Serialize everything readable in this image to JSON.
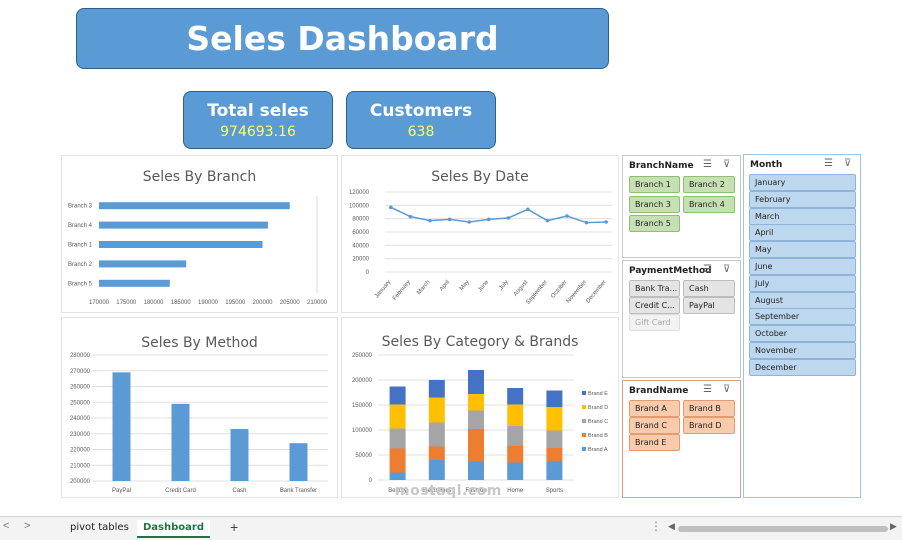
{
  "dashboard": {
    "title": "Seles Dashboard",
    "kpis": {
      "total_sales": {
        "label": "Total seles",
        "value": "974693.16"
      },
      "customers": {
        "label": "Customers",
        "value": "638"
      }
    }
  },
  "chart_data": [
    {
      "type": "bar",
      "orientation": "horizontal",
      "title": "Seles By Branch",
      "categories": [
        "Branch 3",
        "Branch 4",
        "Branch 1",
        "Branch 2",
        "Branch 5"
      ],
      "values": [
        205000,
        201000,
        200000,
        186000,
        183000
      ],
      "xlim": [
        170000,
        210000
      ],
      "xticks": [
        "170000",
        "175000",
        "180000",
        "185000",
        "190000",
        "195000",
        "200000",
        "205000",
        "210000"
      ],
      "color": "#5b9bd5"
    },
    {
      "type": "line",
      "title": "Seles By Date",
      "categories": [
        "January",
        "February",
        "March",
        "April",
        "May",
        "June",
        "July",
        "August",
        "September",
        "October",
        "November",
        "December"
      ],
      "values": [
        97000,
        83000,
        77000,
        79000,
        75000,
        79000,
        81000,
        94000,
        77000,
        84000,
        74000,
        75000
      ],
      "ylim": [
        0,
        120000
      ],
      "yticks": [
        "0",
        "20000",
        "40000",
        "60000",
        "80000",
        "100000",
        "120000"
      ],
      "color": "#5b9bd5"
    },
    {
      "type": "bar",
      "title": "Seles By Method",
      "categories": [
        "PayPal",
        "Credit Card",
        "Cash",
        "Bank Transfer"
      ],
      "values": [
        269000,
        249000,
        233000,
        224000
      ],
      "ylim": [
        200000,
        280000
      ],
      "yticks": [
        "200000",
        "210000",
        "220000",
        "230000",
        "240000",
        "250000",
        "260000",
        "270000",
        "280000"
      ],
      "color": "#5b9bd5"
    },
    {
      "type": "bar",
      "stacked": true,
      "title": "Seles By Category & Brands",
      "categories": [
        "Beauty",
        "Electronics",
        "Fashion",
        "Home",
        "Sports"
      ],
      "series": [
        {
          "name": "Brand A",
          "values": [
            15000,
            40000,
            37000,
            35000,
            37000
          ],
          "color": "#5b9bd5"
        },
        {
          "name": "Brand B",
          "values": [
            48000,
            27000,
            65000,
            33000,
            27000
          ],
          "color": "#ed7d31"
        },
        {
          "name": "Brand C",
          "values": [
            40000,
            48000,
            37000,
            40000,
            35000
          ],
          "color": "#a5a5a5"
        },
        {
          "name": "Brand D",
          "values": [
            48000,
            50000,
            33000,
            43000,
            47000
          ],
          "color": "#ffc000"
        },
        {
          "name": "Brand E",
          "values": [
            36000,
            35000,
            48000,
            33000,
            33000
          ],
          "color": "#4472c4"
        }
      ],
      "ylim": [
        0,
        250000
      ],
      "yticks": [
        "0",
        "50000",
        "100000",
        "150000",
        "200000",
        "250000"
      ],
      "legend": "right"
    }
  ],
  "slicers": {
    "branch": {
      "header": "BranchName",
      "items": [
        "Branch 1",
        "Branch 2",
        "Branch 3",
        "Branch 4",
        "Branch 5"
      ]
    },
    "payment": {
      "header": "PaymentMethod",
      "items": [
        "Bank Tra...",
        "Cash",
        "Credit C...",
        "PayPal",
        "Gift Card"
      ]
    },
    "brand": {
      "header": "BrandName",
      "items": [
        "Brand A",
        "Brand B",
        "Brand C",
        "Brand D",
        "Brand E"
      ]
    },
    "month": {
      "header": "Month",
      "items": [
        "January",
        "February",
        "March",
        "April",
        "May",
        "June",
        "July",
        "August",
        "September",
        "October",
        "November",
        "December"
      ]
    },
    "icons": {
      "multiselect": "multi-select-icon",
      "clear": "clear-filter-icon"
    }
  },
  "tabs": {
    "sheets": [
      "pivot tables",
      "Dashboard"
    ],
    "active": "Dashboard",
    "add": "+",
    "prev": "<",
    "next": ">",
    "more": "⋮"
  },
  "watermark": "mostaql.com"
}
